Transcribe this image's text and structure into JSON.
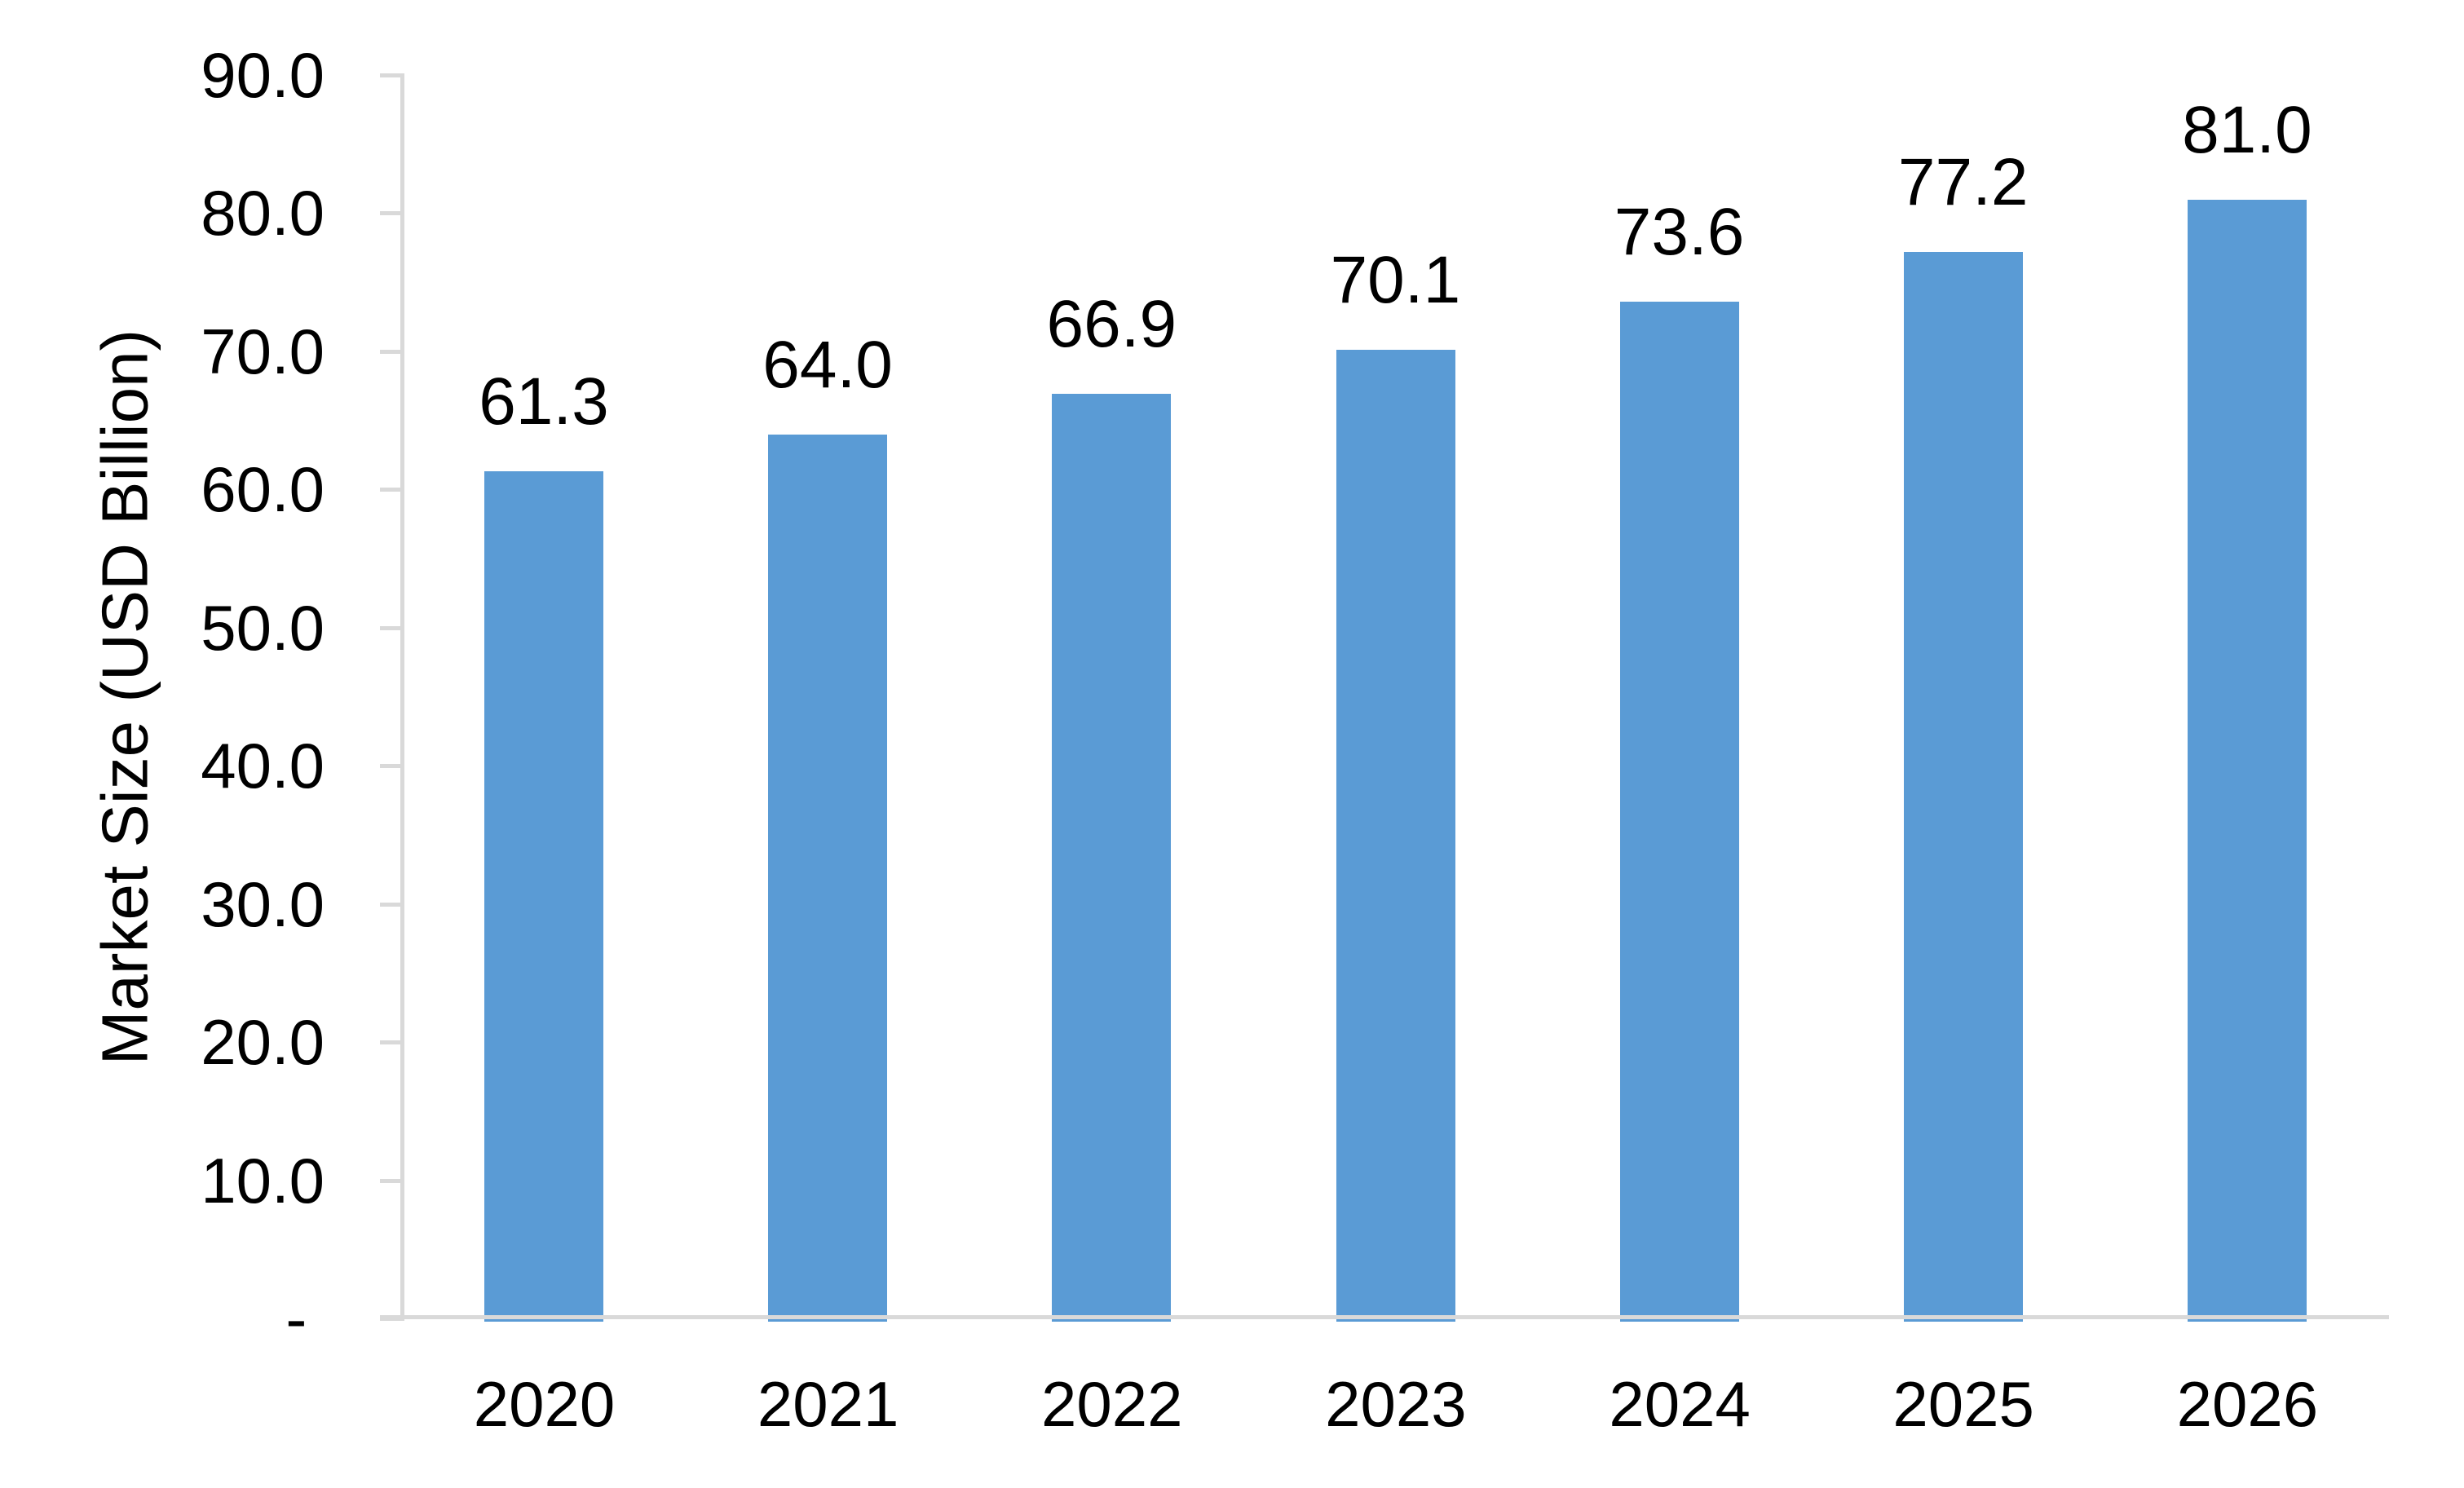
{
  "chart_data": {
    "type": "bar",
    "title": "",
    "xlabel": "",
    "ylabel": "Market Size (USD Billion)",
    "categories": [
      "2020",
      "2021",
      "2022",
      "2023",
      "2024",
      "2025",
      "2026"
    ],
    "values": [
      61.3,
      64.0,
      66.9,
      70.1,
      73.6,
      77.2,
      81.0
    ],
    "data_labels": [
      "61.3",
      "64.0",
      "66.9",
      "70.1",
      "73.6",
      "77.2",
      "81.0"
    ],
    "ylim": [
      0,
      90
    ],
    "ytick_values": [
      90,
      80,
      70,
      60,
      50,
      40,
      30,
      20,
      10,
      0
    ],
    "ytick_labels": [
      "90.0",
      "80.0",
      "70.0",
      "60.0",
      "50.0",
      "40.0",
      "30.0",
      "20.0",
      "10.0",
      "- "
    ],
    "grid": false,
    "legend": "none",
    "bar_color": "#5A9BD5",
    "axis_color": "#D9D9D9",
    "text_color": "#000000",
    "background_color": "#FFFFFF"
  }
}
